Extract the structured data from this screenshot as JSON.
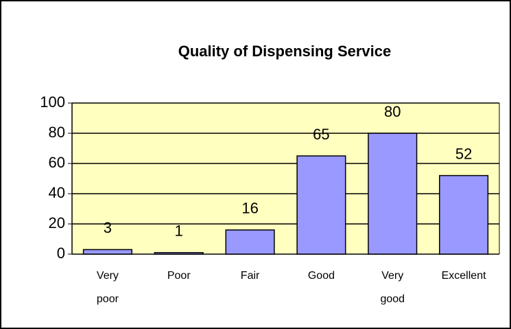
{
  "chart_data": {
    "type": "bar",
    "title": "Quality of Dispensing Service",
    "categories": [
      "Very poor",
      "Poor",
      "Fair",
      "Good",
      "Very good",
      "Excellent"
    ],
    "values": [
      3,
      1,
      16,
      65,
      80,
      52
    ],
    "color": "#9999ff",
    "plot_background": "#ffffc0",
    "ylim": [
      0,
      100
    ],
    "yticks": [
      0,
      20,
      40,
      60,
      80,
      100
    ],
    "grid": true
  }
}
